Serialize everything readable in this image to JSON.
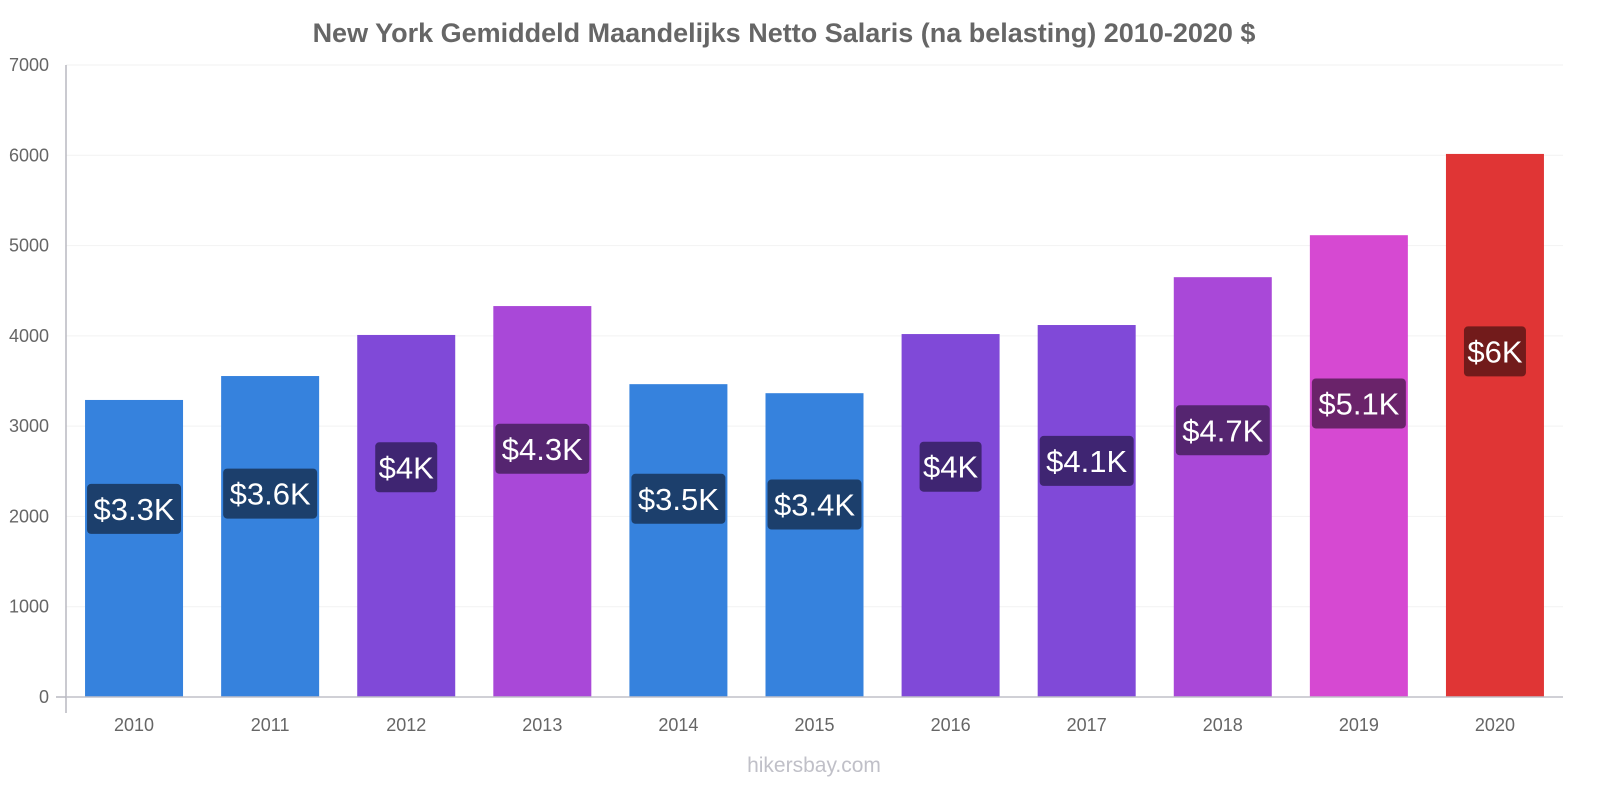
{
  "chart_data": {
    "type": "bar",
    "title": "New York Gemiddeld Maandelijks Netto Salaris (na belasting) 2010-2020 $",
    "xlabel": "",
    "ylabel": "",
    "ylim": [
      0,
      7000
    ],
    "yticks": [
      0,
      1000,
      2000,
      3000,
      4000,
      5000,
      6000,
      7000
    ],
    "grid": true,
    "legend": "none",
    "categories": [
      "2010",
      "2011",
      "2012",
      "2013",
      "2014",
      "2015",
      "2016",
      "2017",
      "2018",
      "2019",
      "2020"
    ],
    "values": [
      3290,
      3555,
      4010,
      4330,
      3465,
      3365,
      4020,
      4120,
      4650,
      5115,
      6015
    ],
    "data_labels": [
      "$3.3K",
      "$3.6K",
      "$4K",
      "$4.3K",
      "$3.5K",
      "$3.4K",
      "$4K",
      "$4.1K",
      "$4.7K",
      "$5.1K",
      "$6K"
    ],
    "bar_colors": [
      "#3682dd",
      "#3682dd",
      "#8049d8",
      "#a948d8",
      "#3682dd",
      "#3682dd",
      "#8049d8",
      "#8049d8",
      "#a948d8",
      "#d649d2",
      "#e03535"
    ],
    "label_colors": [
      "#1c3f6c",
      "#1c3f6c",
      "#3f2572",
      "#552570",
      "#1c3f6c",
      "#1c3f6c",
      "#3f2572",
      "#3f2572",
      "#552570",
      "#6a236a",
      "#721b1b"
    ]
  },
  "footer": "hikersbay.com"
}
